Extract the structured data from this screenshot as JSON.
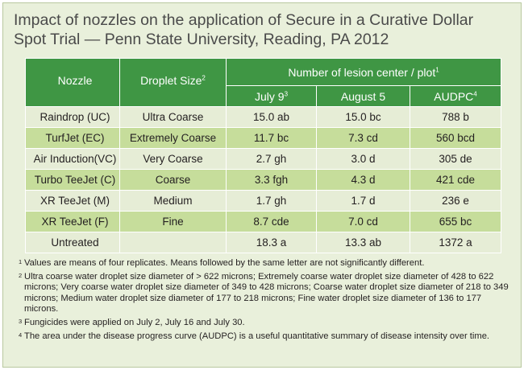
{
  "title": {
    "line1": "Impact of nozzles on the application of Secure in a Curative Dollar",
    "line2": "Spot Trial — Penn State University, Reading, PA 2012"
  },
  "table": {
    "header": {
      "group": "Number of lesion center / plot",
      "group_sup": "1",
      "nozzle": "Nozzle",
      "droplet": "Droplet Size",
      "droplet_sup": "2",
      "july": "July 9",
      "july_sup": "3",
      "august": "August 5",
      "audpc": "AUDPC",
      "audpc_sup": "4"
    },
    "rows": [
      {
        "nozzle": "Raindrop (UC)",
        "droplet": "Ultra Coarse",
        "july": "15.0 ab",
        "august": "15.0 bc",
        "audpc": "788 b"
      },
      {
        "nozzle": "TurfJet (EC)",
        "droplet": "Extremely Coarse",
        "july": "11.7 bc",
        "august": "7.3 cd",
        "audpc": "560 bcd"
      },
      {
        "nozzle": "Air Induction(VC)",
        "droplet": "Very Coarse",
        "july": "2.7 gh",
        "august": "3.0 d",
        "audpc": "305 de"
      },
      {
        "nozzle": "Turbo TeeJet (C)",
        "droplet": "Coarse",
        "july": "3.3 fgh",
        "august": "4.3 d",
        "audpc": "421 cde"
      },
      {
        "nozzle": "XR TeeJet (M)",
        "droplet": "Medium",
        "july": "1.7 gh",
        "august": "1.7 d",
        "audpc": "236 e"
      },
      {
        "nozzle": "XR TeeJet (F)",
        "droplet": "Fine",
        "july": "8.7 cde",
        "august": "7.0 cd",
        "audpc": "655 bc"
      },
      {
        "nozzle": "Untreated",
        "droplet": "",
        "july": "18.3 a",
        "august": "13.3 ab",
        "audpc": "1372 a"
      }
    ]
  },
  "footnotes": [
    {
      "num": "1",
      "text": "Values are means of four replicates. Means followed by the same letter are not significantly different."
    },
    {
      "num": "2",
      "text": "Ultra coarse water droplet size diameter of > 622 microns; Extremely coarse water droplet size diameter of 428 to 622 microns; Very coarse water droplet size diameter of 349 to 428 microns; Coarse water droplet size diameter of 218 to 349 microns; Medium water droplet size diameter of 177 to 218 microns; Fine water droplet size diameter of 136 to 177 microns."
    },
    {
      "num": "3",
      "text": "Fungicides were applied on July 2, July 16 and July 30."
    },
    {
      "num": "4",
      "text": "The area under the disease progress curve (AUDPC) is a useful quantitative summary of disease intensity over time."
    }
  ]
}
